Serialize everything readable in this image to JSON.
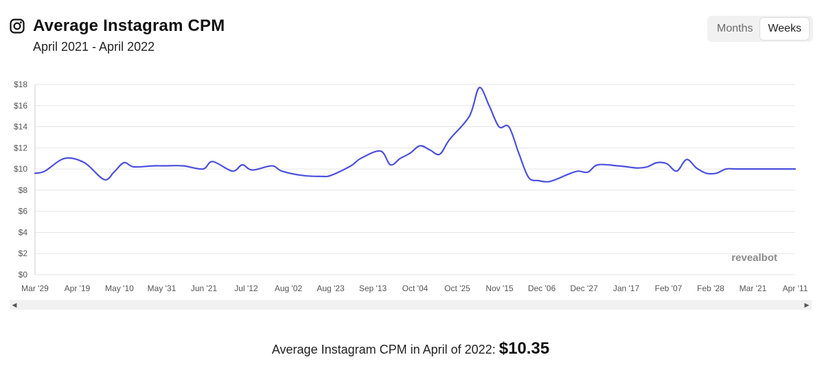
{
  "header": {
    "title": "Average Instagram CPM",
    "subtitle": "April 2021 - April 2022",
    "icon": "instagram-icon"
  },
  "toggle": {
    "months_label": "Months",
    "weeks_label": "Weeks",
    "selected": "Weeks"
  },
  "watermark": "revealbot",
  "footer": {
    "text": "Average Instagram CPM in April of 2022:",
    "value": "$10.35"
  },
  "colors": {
    "line": "#4a4fdc",
    "grid": "#e6e6e6",
    "axis_text": "#555555"
  },
  "chart_data": {
    "type": "line",
    "title": "Average Instagram CPM",
    "xlabel": "",
    "ylabel": "",
    "ylim": [
      0,
      18
    ],
    "y_ticks": [
      "$0",
      "$2",
      "$4",
      "$6",
      "$8",
      "$10",
      "$12",
      "$14",
      "$16",
      "$18"
    ],
    "x_tick_labels": [
      "Mar '29",
      "Apr '19",
      "May '10",
      "May '31",
      "Jun '21",
      "Jul '12",
      "Aug '02",
      "Aug '23",
      "Sep '13",
      "Oct '04",
      "Oct '25",
      "Nov '15",
      "Dec '06",
      "Dec '27",
      "Jan '17",
      "Feb '07",
      "Feb '28",
      "Mar '21",
      "Apr '11"
    ],
    "x_week_count": 54,
    "series": [
      {
        "name": "Average Instagram CPM",
        "week_index": [
          0,
          1,
          3,
          5,
          7,
          8,
          9,
          10,
          12,
          13,
          15,
          17,
          18,
          20,
          21,
          22,
          24,
          25,
          27,
          29,
          30,
          32,
          33,
          35,
          36,
          37,
          38,
          39,
          40,
          41,
          42,
          44,
          45,
          46,
          47,
          48,
          49,
          50,
          51,
          52,
          53,
          54,
          55,
          56,
          57,
          59,
          60,
          61,
          62,
          63,
          64,
          65,
          66,
          67,
          68,
          69,
          70,
          71,
          72,
          73,
          74,
          75,
          76,
          77
        ],
        "values": [
          9.6,
          9.8,
          11.0,
          10.6,
          9.0,
          9.7,
          10.6,
          10.2,
          10.3,
          10.3,
          10.3,
          10.0,
          10.7,
          9.8,
          10.4,
          9.9,
          10.3,
          9.8,
          9.4,
          9.3,
          9.4,
          10.3,
          11.0,
          11.7,
          10.4,
          11.0,
          11.5,
          12.2,
          11.8,
          11.4,
          12.8,
          15.0,
          17.7,
          16.0,
          14.0,
          14.0,
          11.5,
          9.2,
          8.9,
          8.8,
          9.1,
          9.5,
          9.8,
          9.7,
          10.4,
          10.3,
          10.2,
          10.1,
          10.2,
          10.6,
          10.5,
          9.8,
          10.9,
          10.1,
          9.6,
          9.6,
          10.0,
          10.0,
          10.0,
          10.0,
          10.0,
          10.0,
          10.0,
          10.0
        ]
      }
    ]
  }
}
